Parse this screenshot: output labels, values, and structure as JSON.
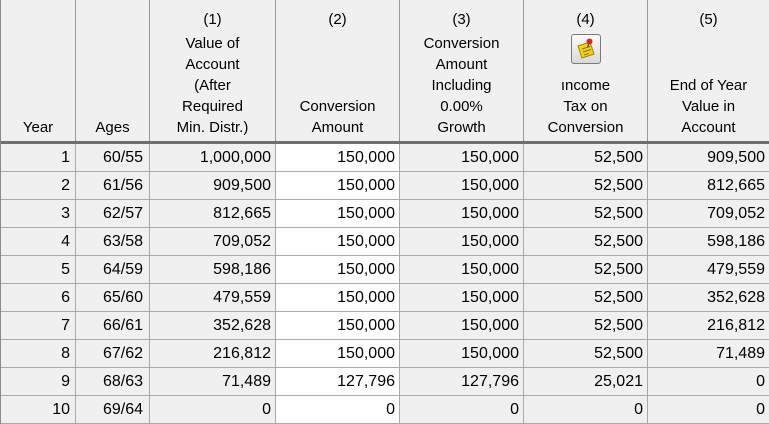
{
  "headers": [
    {
      "key": "year",
      "num": "",
      "lines": [
        "Year"
      ]
    },
    {
      "key": "ages",
      "num": "",
      "lines": [
        "Ages"
      ]
    },
    {
      "key": "value",
      "num": "(1)",
      "lines": [
        "Value of",
        "Account",
        "(After",
        "Required",
        "Min. Distr.)"
      ]
    },
    {
      "key": "conversion",
      "num": "(2)",
      "lines": [
        "Conversion",
        "Amount"
      ]
    },
    {
      "key": "conv_growth",
      "num": "(3)",
      "lines": [
        "Conversion",
        "Amount",
        "Including",
        "0.00%",
        "Growth"
      ]
    },
    {
      "key": "tax",
      "num": "(4)",
      "lines": [
        "ıncome",
        "Tax on",
        "Conversion"
      ],
      "icon": "sticky-note-pin-icon"
    },
    {
      "key": "end_value",
      "num": "(5)",
      "lines": [
        "End of Year",
        "Value in",
        "Account"
      ]
    }
  ],
  "rows": [
    {
      "year": "1",
      "ages": "60/55",
      "value": "1,000,000",
      "conversion": "150,000",
      "conv_growth": "150,000",
      "tax": "52,500",
      "end_value": "909,500"
    },
    {
      "year": "2",
      "ages": "61/56",
      "value": "909,500",
      "conversion": "150,000",
      "conv_growth": "150,000",
      "tax": "52,500",
      "end_value": "812,665"
    },
    {
      "year": "3",
      "ages": "62/57",
      "value": "812,665",
      "conversion": "150,000",
      "conv_growth": "150,000",
      "tax": "52,500",
      "end_value": "709,052"
    },
    {
      "year": "4",
      "ages": "63/58",
      "value": "709,052",
      "conversion": "150,000",
      "conv_growth": "150,000",
      "tax": "52,500",
      "end_value": "598,186"
    },
    {
      "year": "5",
      "ages": "64/59",
      "value": "598,186",
      "conversion": "150,000",
      "conv_growth": "150,000",
      "tax": "52,500",
      "end_value": "479,559"
    },
    {
      "year": "6",
      "ages": "65/60",
      "value": "479,559",
      "conversion": "150,000",
      "conv_growth": "150,000",
      "tax": "52,500",
      "end_value": "352,628"
    },
    {
      "year": "7",
      "ages": "66/61",
      "value": "352,628",
      "conversion": "150,000",
      "conv_growth": "150,000",
      "tax": "52,500",
      "end_value": "216,812"
    },
    {
      "year": "8",
      "ages": "67/62",
      "value": "216,812",
      "conversion": "150,000",
      "conv_growth": "150,000",
      "tax": "52,500",
      "end_value": "71,489"
    },
    {
      "year": "9",
      "ages": "68/63",
      "value": "71,489",
      "conversion": "127,796",
      "conv_growth": "127,796",
      "tax": "25,021",
      "end_value": "0"
    },
    {
      "year": "10",
      "ages": "69/64",
      "value": "0",
      "conversion": "0",
      "conv_growth": "0",
      "tax": "0",
      "end_value": "0"
    }
  ],
  "colors": {
    "header_bg": "#f0f0f0",
    "grid_line": "#a9a9a9",
    "editable_bg": "#ffffff"
  }
}
